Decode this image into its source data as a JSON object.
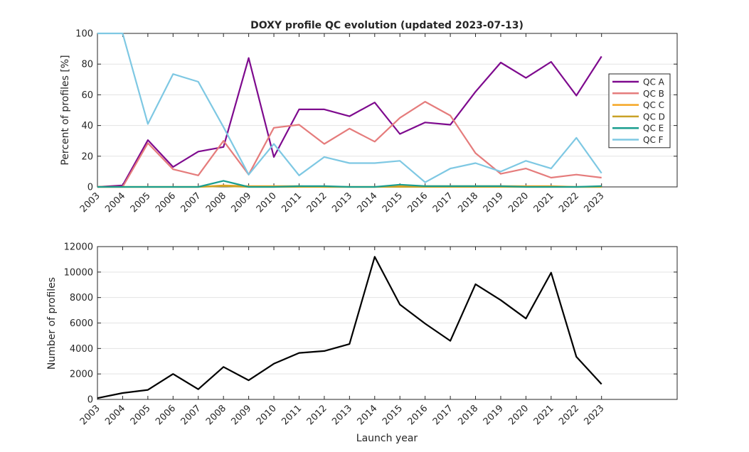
{
  "chart_data": [
    {
      "type": "line",
      "title": "DOXY profile QC evolution (updated 2023-07-13)",
      "xlabel": "",
      "ylabel": "Percent of profiles [%]",
      "xlim": [
        2003,
        2026
      ],
      "ylim": [
        0,
        100
      ],
      "x_ticks": [
        "2003",
        "2004",
        "2005",
        "2006",
        "2007",
        "2008",
        "2009",
        "2010",
        "2011",
        "2012",
        "2013",
        "2014",
        "2015",
        "2016",
        "2017",
        "2018",
        "2019",
        "2020",
        "2021",
        "2022",
        "2023"
      ],
      "y_ticks": [
        0,
        20,
        40,
        60,
        80,
        100
      ],
      "grid": "horizontal",
      "legend": "right",
      "x": [
        2003,
        2004,
        2005,
        2006,
        2007,
        2008,
        2009,
        2010,
        2011,
        2012,
        2013,
        2014,
        2015,
        2016,
        2017,
        2018,
        2019,
        2020,
        2021,
        2022,
        2023
      ],
      "series": [
        {
          "name": "QC A",
          "color": "#7e0a8e",
          "values": [
            0,
            1,
            30.5,
            13,
            23,
            26,
            84,
            19.5,
            50.5,
            50.5,
            46,
            55,
            34.5,
            42,
            40.5,
            62,
            81,
            71,
            81.5,
            59.5,
            85
          ]
        },
        {
          "name": "QC B",
          "color": "#e57c7c",
          "values": [
            0,
            0,
            28.5,
            11.5,
            7.5,
            30,
            8,
            38.5,
            40.5,
            28,
            38,
            29.5,
            45,
            55.5,
            46.5,
            22,
            8.5,
            12,
            6,
            8,
            6
          ]
        },
        {
          "name": "QC C",
          "color": "#f5a623",
          "values": [
            0,
            0,
            0,
            0,
            0,
            1,
            0.5,
            0.5,
            0.5,
            0,
            0,
            0,
            0.5,
            0.5,
            0.5,
            0.5,
            0.5,
            0.5,
            0.5,
            0,
            0
          ]
        },
        {
          "name": "QC D",
          "color": "#c9a227",
          "values": [
            0,
            0,
            0,
            0,
            0,
            0.5,
            0,
            0,
            0,
            0,
            0,
            0,
            0,
            0,
            0,
            0,
            0,
            0,
            0,
            0,
            0
          ]
        },
        {
          "name": "QC E",
          "color": "#1a9e8f",
          "values": [
            0,
            0,
            0,
            0,
            0,
            4,
            0,
            0,
            0.5,
            0.5,
            0,
            0,
            1.5,
            0.5,
            0.5,
            0.5,
            0.5,
            0,
            0,
            0,
            0.5
          ]
        },
        {
          "name": "QC F",
          "color": "#7ec8e3",
          "values": [
            100,
            100,
            41,
            73.5,
            68.5,
            39,
            8,
            28,
            7.5,
            19.5,
            15.5,
            15.5,
            17,
            3,
            12,
            15.5,
            10,
            17,
            12,
            32,
            9
          ]
        }
      ]
    },
    {
      "type": "line",
      "title": "",
      "xlabel": "Launch year",
      "ylabel": "Number of profiles",
      "xlim": [
        2003,
        2026
      ],
      "ylim": [
        0,
        12000
      ],
      "x_ticks": [
        "2003",
        "2004",
        "2005",
        "2006",
        "2007",
        "2008",
        "2009",
        "2010",
        "2011",
        "2012",
        "2013",
        "2014",
        "2015",
        "2016",
        "2017",
        "2018",
        "2019",
        "2020",
        "2021",
        "2022",
        "2023"
      ],
      "y_ticks": [
        0,
        2000,
        4000,
        6000,
        8000,
        10000,
        12000
      ],
      "grid": "horizontal",
      "x": [
        2003,
        2004,
        2005,
        2006,
        2007,
        2008,
        2009,
        2010,
        2011,
        2012,
        2013,
        2014,
        2015,
        2016,
        2017,
        2018,
        2019,
        2020,
        2021,
        2022,
        2023
      ],
      "series": [
        {
          "color": "#000000",
          "values": [
            100,
            500,
            750,
            2000,
            800,
            2550,
            1500,
            2800,
            3650,
            3800,
            4350,
            11200,
            7450,
            5950,
            4600,
            9050,
            7800,
            6350,
            9950,
            3350,
            1200
          ]
        }
      ]
    }
  ]
}
